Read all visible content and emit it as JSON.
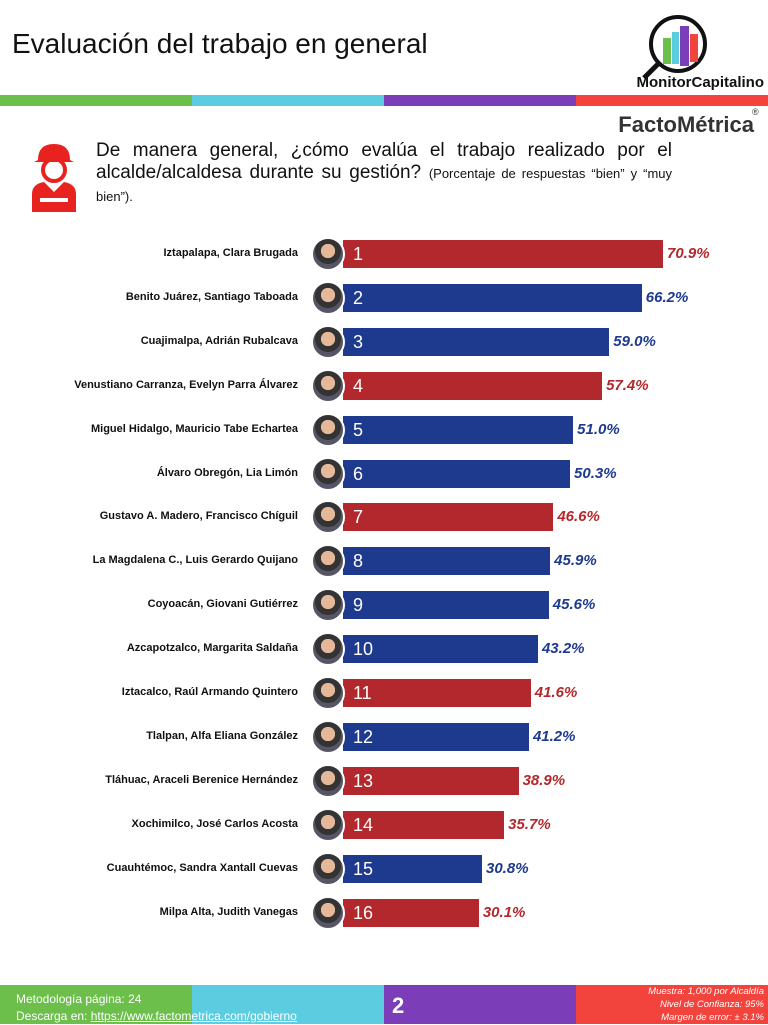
{
  "header": {
    "title": "Evaluación del trabajo en general",
    "brand1": "MonitorCapitalino",
    "brand2": "FactoMétrica",
    "reg": "®"
  },
  "colors": {
    "green": "#6cbf4a",
    "cyan": "#5ccde0",
    "purple": "#7b3db8",
    "red": "#f2433c",
    "bar_red": "#b3282d",
    "bar_blue": "#1e3a8f"
  },
  "question": {
    "main": "De manera general, ¿cómo evalúa el trabajo realizado por el alcalde/alcaldesa durante su gestión?",
    "note": "(Porcentaje de respuestas “bien” y “muy bien”)."
  },
  "chart_data": {
    "type": "bar",
    "orientation": "horizontal",
    "categories": [
      "Iztapalapa, Clara Brugada",
      "Benito Juárez, Santiago Taboada",
      "Cuajimalpa, Adrián Rubalcava",
      "Venustiano Carranza, Evelyn Parra Álvarez",
      "Miguel Hidalgo, Mauricio Tabe Echartea",
      "Álvaro Obregón, Lia Limón",
      "Gustavo A. Madero, Francisco Chíguil",
      "La Magdalena C., Luis Gerardo Quijano",
      "Coyoacán, Giovani Gutiérrez",
      "Azcapotzalco, Margarita Saldaña",
      "Iztacalco, Raúl Armando Quintero",
      "Tlalpan, Alfa Eliana González",
      "Tláhuac, Araceli Berenice Hernández",
      "Xochimilco, José Carlos Acosta",
      "Cuauhtémoc, Sandra Xantall Cuevas",
      "Milpa Alta, Judith Vanegas"
    ],
    "ranks": [
      "1",
      "2",
      "3",
      "4",
      "5",
      "6",
      "7",
      "8",
      "9",
      "10",
      "11",
      "12",
      "13",
      "14",
      "15",
      "16"
    ],
    "values": [
      70.9,
      66.2,
      59.0,
      57.4,
      51.0,
      50.3,
      46.6,
      45.9,
      45.6,
      43.2,
      41.6,
      41.2,
      38.9,
      35.7,
      30.8,
      30.1
    ],
    "labels": [
      "70.9%",
      "66.2%",
      "59.0%",
      "57.4%",
      "51.0%",
      "50.3%",
      "46.6%",
      "45.9%",
      "45.6%",
      "43.2%",
      "41.6%",
      "41.2%",
      "38.9%",
      "35.7%",
      "30.8%",
      "30.1%"
    ],
    "bar_colors": [
      "red",
      "blue",
      "blue",
      "red",
      "blue",
      "blue",
      "red",
      "blue",
      "blue",
      "blue",
      "red",
      "blue",
      "red",
      "red",
      "blue",
      "red"
    ],
    "grid": false
  },
  "footer": {
    "method": "Metodología página: 24",
    "download_prefix": "Descarga en: ",
    "download_link": "https://www.factometrica.com/gobierno",
    "page": "2",
    "sample": "Muestra:  1,000 por Alcaldía",
    "confidence": "Nivel de Confianza: 95%",
    "error": "Margen de error: ± 3.1%"
  }
}
